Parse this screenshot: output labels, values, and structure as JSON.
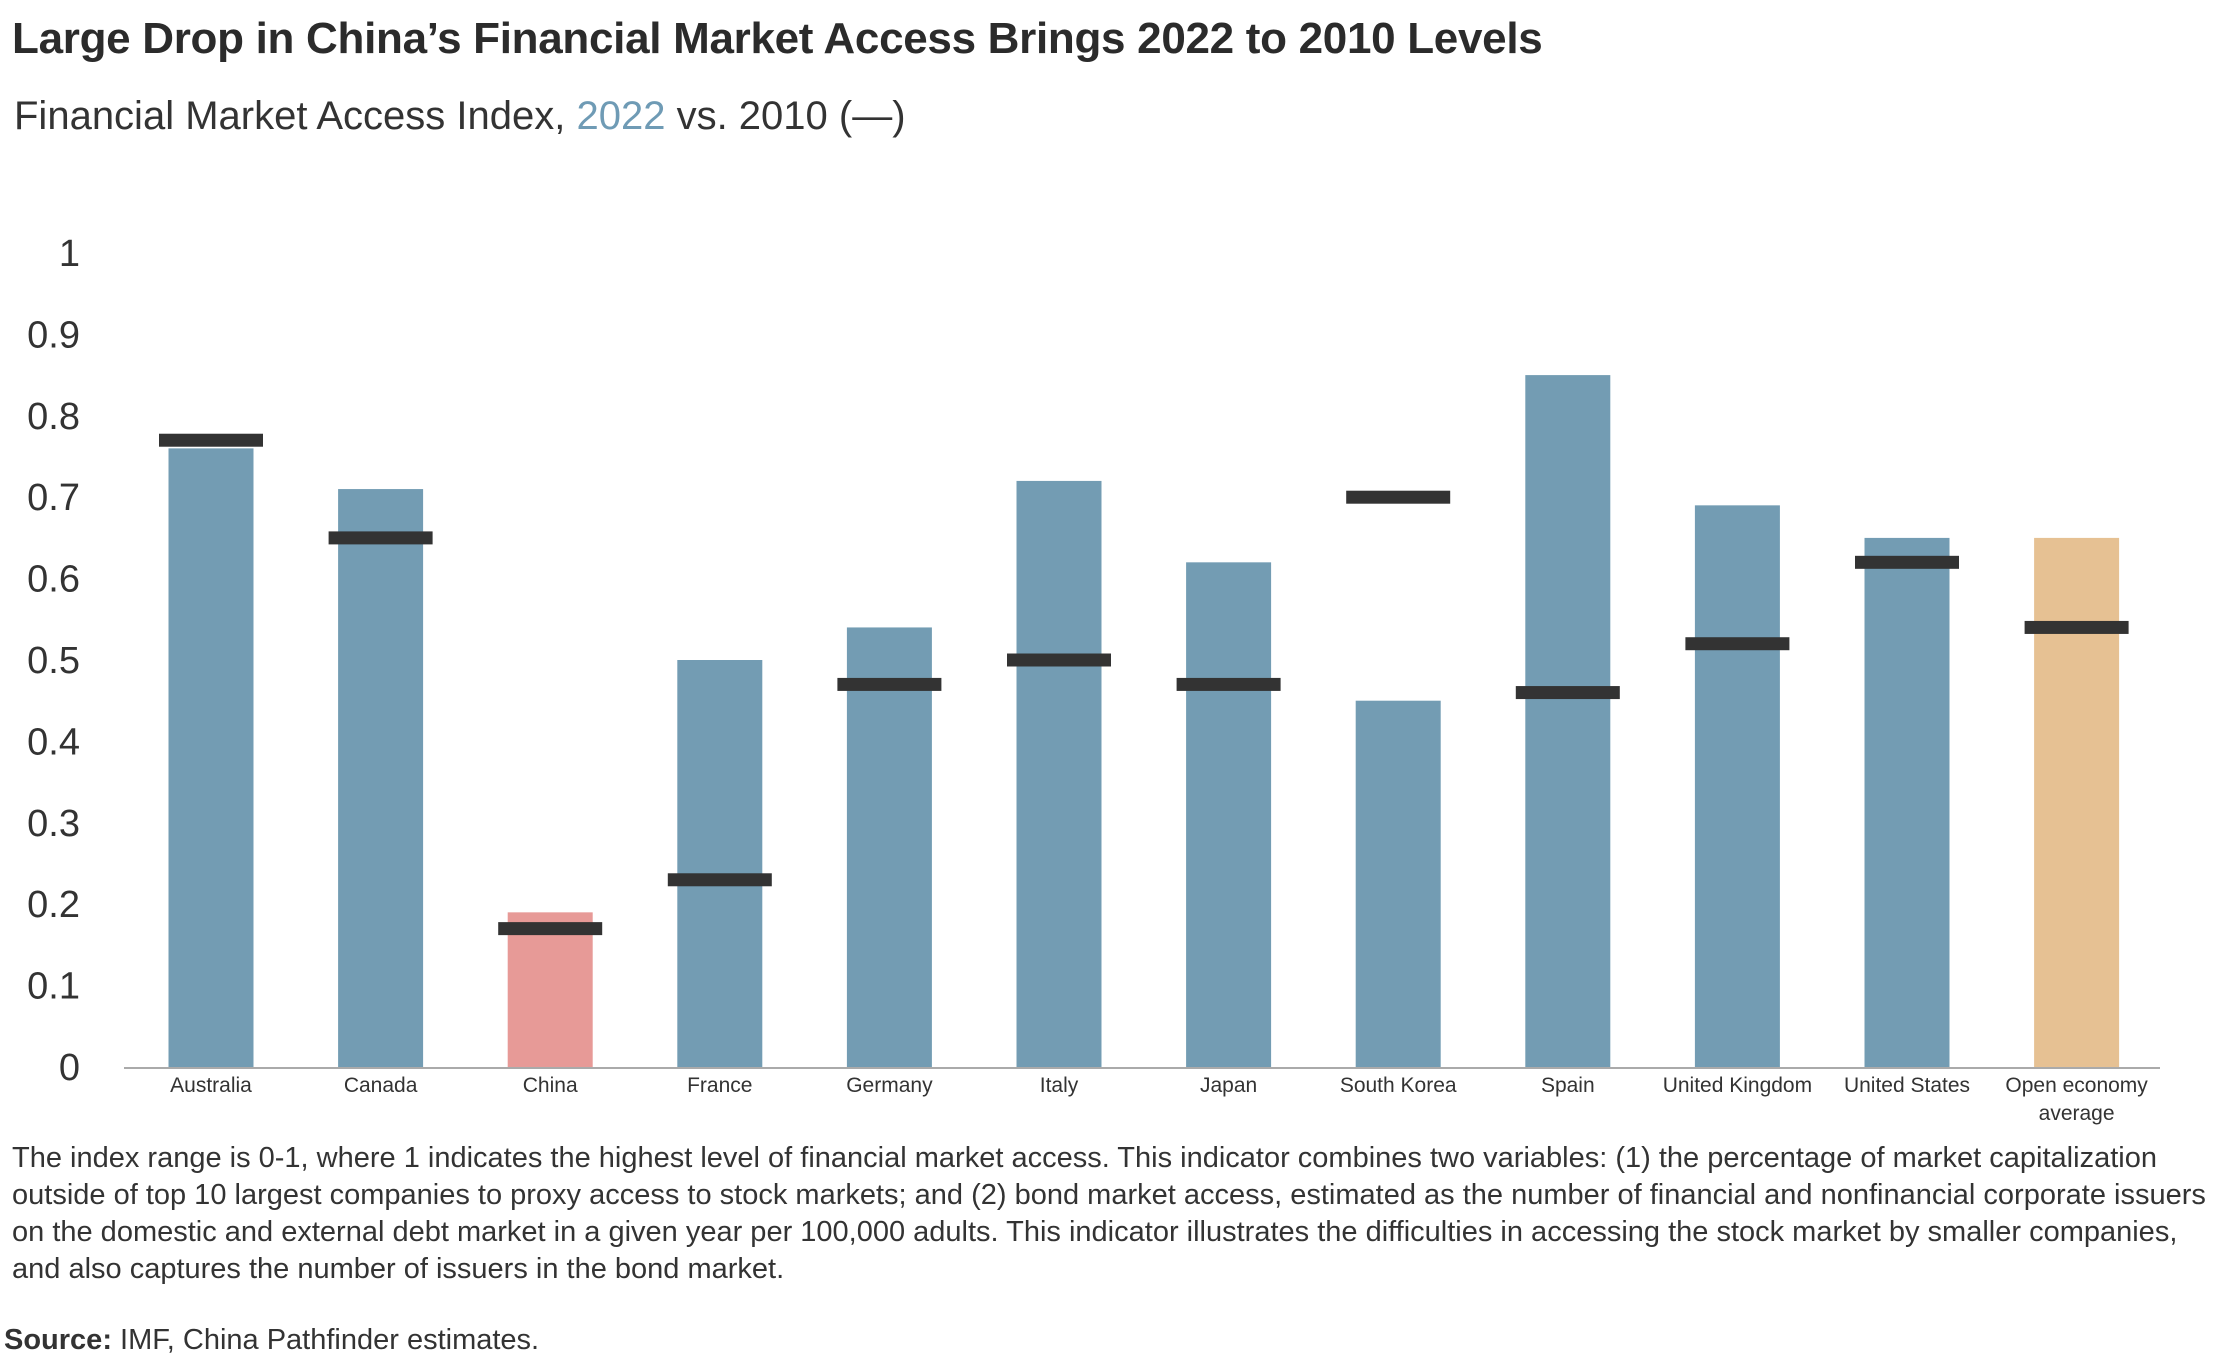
{
  "title": "Large Drop in China’s Financial Market Access Brings 2022 to 2010 Levels",
  "subtitle": {
    "prefix": "Financial Market Access Index, ",
    "highlight": "2022",
    "suffix": " vs. 2010 (—)"
  },
  "note": "The index range is 0-1, where 1 indicates the highest level of financial market access. This indicator combines two variables: (1) the percentage of market capitalization outside of top 10 largest companies to proxy access to stock markets; and (2) bond market access, estimated as the number of financial and nonfinancial corporate issuers on the domestic and external debt market in a given year per 100,000 adults. This indicator illustrates the difficulties in accessing the stock market by smaller companies, and also captures the number of issuers in the bond market.",
  "source": {
    "label": "Source:",
    "text": " IMF, China Pathfinder estimates."
  },
  "colors": {
    "default_bar": "#739cb3",
    "china_bar": "#e79a97",
    "average_bar": "#e6c193",
    "marker_2010": "#333333",
    "axis": "#aaaaaa"
  },
  "chart_data": {
    "type": "bar",
    "title": "Financial Market Access Index, 2022 vs. 2010 (—)",
    "xlabel": "",
    "ylabel": "",
    "ylim": [
      0,
      1
    ],
    "yticks": [
      "0",
      "0.1",
      "0.2",
      "0.3",
      "0.4",
      "0.5",
      "0.6",
      "0.7",
      "0.8",
      "0.9",
      "1"
    ],
    "categories": [
      "Australia",
      "Canada",
      "China",
      "France",
      "Germany",
      "Italy",
      "Japan",
      "South Korea",
      "Spain",
      "United Kingdom",
      "United States",
      "Open economy average"
    ],
    "series": [
      {
        "name": "2022",
        "mark": "bar",
        "values": [
          0.76,
          0.71,
          0.19,
          0.5,
          0.54,
          0.72,
          0.62,
          0.45,
          0.85,
          0.69,
          0.65,
          0.65
        ]
      },
      {
        "name": "2010",
        "mark": "line-marker",
        "values": [
          0.77,
          0.65,
          0.17,
          0.23,
          0.47,
          0.5,
          0.47,
          0.7,
          0.46,
          0.52,
          0.62,
          0.54
        ]
      }
    ],
    "highlight": {
      "China": "china_bar",
      "Open economy average": "average_bar"
    }
  }
}
